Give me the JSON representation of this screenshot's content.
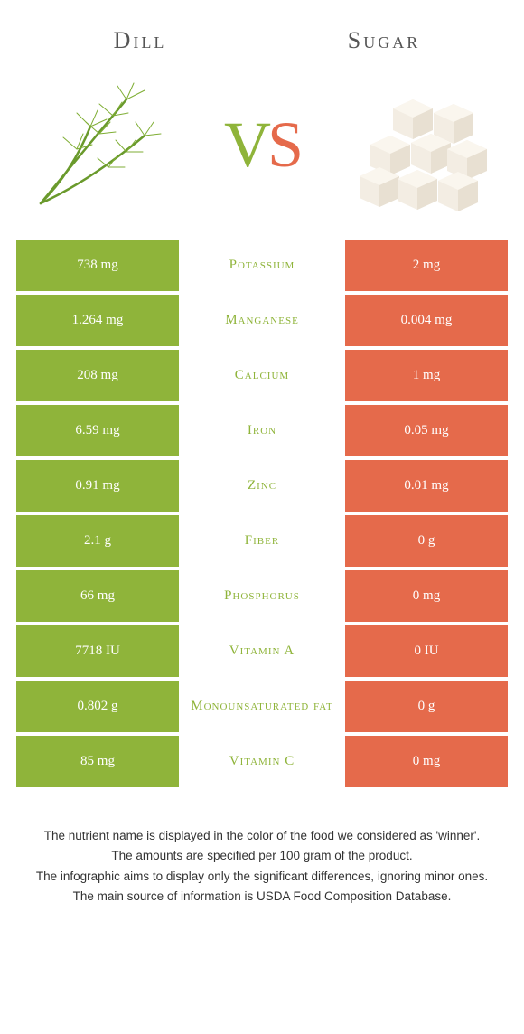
{
  "colors": {
    "left": "#8fb43a",
    "right": "#e56a4b",
    "mid_text_left": "#8fb43a",
    "mid_text_right": "#e56a4b"
  },
  "header": {
    "left_title": "Dill",
    "right_title": "Sugar"
  },
  "vs": {
    "v": "V",
    "s": "S"
  },
  "rows": [
    {
      "left": "738 mg",
      "label": "Potassium",
      "right": "2 mg",
      "winner": "left"
    },
    {
      "left": "1.264 mg",
      "label": "Manganese",
      "right": "0.004 mg",
      "winner": "left"
    },
    {
      "left": "208 mg",
      "label": "Calcium",
      "right": "1 mg",
      "winner": "left"
    },
    {
      "left": "6.59 mg",
      "label": "Iron",
      "right": "0.05 mg",
      "winner": "left"
    },
    {
      "left": "0.91 mg",
      "label": "Zinc",
      "right": "0.01 mg",
      "winner": "left"
    },
    {
      "left": "2.1 g",
      "label": "Fiber",
      "right": "0 g",
      "winner": "left"
    },
    {
      "left": "66 mg",
      "label": "Phosphorus",
      "right": "0 mg",
      "winner": "left"
    },
    {
      "left": "7718 IU",
      "label": "Vitamin A",
      "right": "0 IU",
      "winner": "left"
    },
    {
      "left": "0.802 g",
      "label": "Monounsaturated fat",
      "right": "0 g",
      "winner": "left"
    },
    {
      "left": "85 mg",
      "label": "Vitamin C",
      "right": "0 mg",
      "winner": "left"
    }
  ],
  "footnotes": [
    "The nutrient name is displayed in the color of the food we considered as 'winner'.",
    "The amounts are specified per 100 gram of the product.",
    "The infographic aims to display only the significant differences, ignoring minor ones.",
    "The main source of information is USDA Food Composition Database."
  ]
}
